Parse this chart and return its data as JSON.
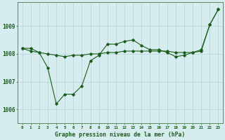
{
  "title": "Graphe pression niveau de la mer (hPa)",
  "bg_color": "#d7ecee",
  "grid_color": "#b8d8db",
  "line_color": "#1a5c1a",
  "ylim": [
    1005.5,
    1009.85
  ],
  "xlim": [
    -0.5,
    23.5
  ],
  "yticks": [
    1006,
    1007,
    1008,
    1009
  ],
  "xticks": [
    0,
    1,
    2,
    3,
    4,
    5,
    6,
    7,
    8,
    9,
    10,
    11,
    12,
    13,
    14,
    15,
    16,
    17,
    18,
    19,
    20,
    21,
    22,
    23
  ],
  "series1_x": [
    0,
    1,
    2,
    3,
    4,
    5,
    6,
    7,
    8,
    9,
    10,
    11,
    12,
    13,
    14,
    15,
    16,
    17,
    18,
    19,
    20,
    21,
    22,
    23
  ],
  "series1_y": [
    1008.2,
    1008.2,
    1008.05,
    1007.5,
    1006.2,
    1006.55,
    1006.55,
    1006.85,
    1007.75,
    1007.95,
    1008.35,
    1008.35,
    1008.45,
    1008.5,
    1008.3,
    1008.15,
    1008.15,
    1008.05,
    1007.9,
    1007.95,
    1008.05,
    1008.15,
    1009.05,
    1009.6
  ],
  "series2_x": [
    0,
    1,
    2,
    3,
    4,
    5,
    6,
    7,
    8,
    9,
    10,
    11,
    12,
    13,
    14,
    15,
    16,
    17,
    18,
    19,
    20,
    21,
    22,
    23
  ],
  "series2_y": [
    1008.2,
    1008.1,
    1008.05,
    1008.0,
    1007.95,
    1007.9,
    1007.95,
    1007.95,
    1008.0,
    1008.0,
    1008.05,
    1008.05,
    1008.1,
    1008.1,
    1008.1,
    1008.1,
    1008.1,
    1008.1,
    1008.05,
    1008.05,
    1008.05,
    1008.1,
    1009.05,
    1009.6
  ]
}
